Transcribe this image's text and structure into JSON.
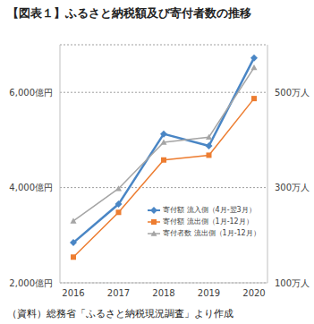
{
  "chart_data": {
    "type": "line",
    "title": "【図表１】ふるさと納税額及び寄付者数の推移",
    "source": "（資料）総務省「ふるさと納税現況調査」より作成",
    "categories": [
      "2016",
      "2017",
      "2018",
      "2019",
      "2020"
    ],
    "series": [
      {
        "name": "寄付額 流入側（4月-翌3月）",
        "color": "#4a86c5",
        "marker": "diamond",
        "values": [
          2844,
          3653,
          5127,
          4875,
          6725
        ]
      },
      {
        "name": "寄付額 流出側（1月-12月）",
        "color": "#ed7d31",
        "marker": "square",
        "values": [
          2540,
          3480,
          4580,
          4680,
          5870
        ]
      },
      {
        "name": "寄付者数 流出側（1月-12月）",
        "color": "#a5a5a5",
        "marker": "triangle",
        "axis": "y2",
        "values": [
          230,
          298,
          395,
          406,
          552
        ]
      }
    ],
    "ylim": [
      2000,
      7000
    ],
    "yticks": [
      {
        "value": 2000,
        "label": "2,000億円"
      },
      {
        "value": 4000,
        "label": "4,000億円"
      },
      {
        "value": 6000,
        "label": "6,000億円"
      }
    ],
    "y2lim": [
      100,
      600
    ],
    "y2ticks": [
      {
        "value": 100,
        "label": "100万人"
      },
      {
        "value": 300,
        "label": "300万人"
      },
      {
        "value": 500,
        "label": "500万人"
      }
    ],
    "grid": true,
    "legend": "lower right"
  }
}
